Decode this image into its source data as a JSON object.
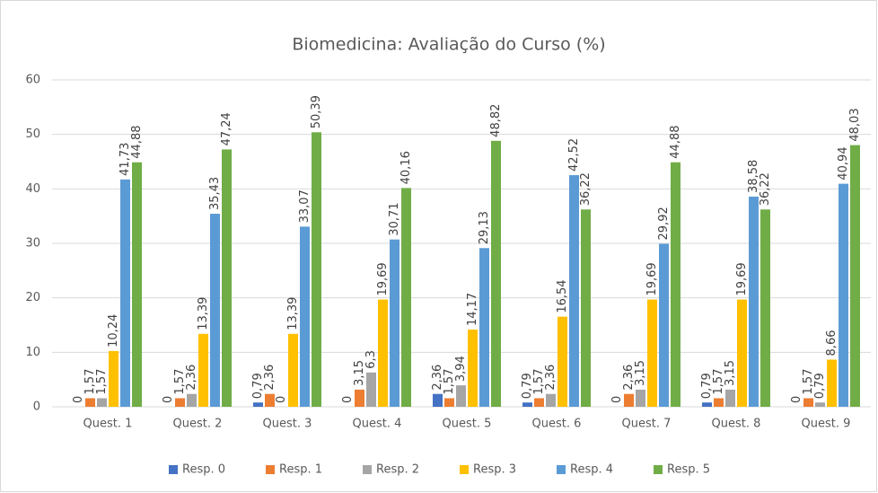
{
  "chart_data": {
    "type": "bar",
    "title": "Biomedicina: Avaliação do Curso (%)",
    "categories": [
      "Quest. 1",
      "Quest. 2",
      "Quest. 3",
      "Quest. 4",
      "Quest. 5",
      "Quest. 6",
      "Quest. 7",
      "Quest. 8",
      "Quest. 9"
    ],
    "series": [
      {
        "name": "Resp. 0",
        "color": "#4472c4",
        "values": [
          0,
          0,
          0.79,
          0,
          2.36,
          0.79,
          0,
          0.79,
          0
        ],
        "value_labels": [
          "0",
          "0",
          "0,79",
          "0",
          "2,36",
          "0,79",
          "0",
          "0,79",
          "0"
        ]
      },
      {
        "name": "Resp. 1",
        "color": "#ed7d31",
        "values": [
          1.57,
          1.57,
          2.36,
          3.15,
          1.57,
          1.57,
          2.36,
          1.57,
          1.57
        ],
        "value_labels": [
          "1,57",
          "1,57",
          "2,36",
          "3,15",
          "1,57",
          "1,57",
          "2,36",
          "1,57",
          "1,57"
        ]
      },
      {
        "name": "Resp. 2",
        "color": "#a5a5a5",
        "values": [
          1.57,
          2.36,
          0,
          6.3,
          3.94,
          2.36,
          3.15,
          3.15,
          0.79
        ],
        "value_labels": [
          "1,57",
          "2,36",
          "0",
          "6,3",
          "3,94",
          "2,36",
          "3,15",
          "3,15",
          "0,79"
        ]
      },
      {
        "name": "Resp. 3",
        "color": "#ffc000",
        "values": [
          10.24,
          13.39,
          13.39,
          19.69,
          14.17,
          16.54,
          19.69,
          19.69,
          8.66
        ],
        "value_labels": [
          "10,24",
          "13,39",
          "13,39",
          "19,69",
          "14,17",
          "16,54",
          "19,69",
          "19,69",
          "8,66"
        ]
      },
      {
        "name": "Resp. 4",
        "color": "#5b9bd5",
        "values": [
          41.73,
          35.43,
          33.07,
          30.71,
          29.13,
          42.52,
          29.92,
          38.58,
          40.94
        ],
        "value_labels": [
          "41,73",
          "35,43",
          "33,07",
          "30,71",
          "29,13",
          "42,52",
          "29,92",
          "38,58",
          "40,94"
        ]
      },
      {
        "name": "Resp. 5",
        "color": "#70ad47",
        "values": [
          44.88,
          47.24,
          50.39,
          40.16,
          48.82,
          36.22,
          44.88,
          36.22,
          48.03
        ],
        "value_labels": [
          "44,88",
          "47,24",
          "50,39",
          "40,16",
          "48,82",
          "36,22",
          "44,88",
          "36,22",
          "48,03"
        ]
      }
    ],
    "ylim": [
      0,
      60
    ],
    "yticks": [
      0,
      10,
      20,
      30,
      40,
      50,
      60
    ],
    "grid": true,
    "legend": "bottom"
  }
}
